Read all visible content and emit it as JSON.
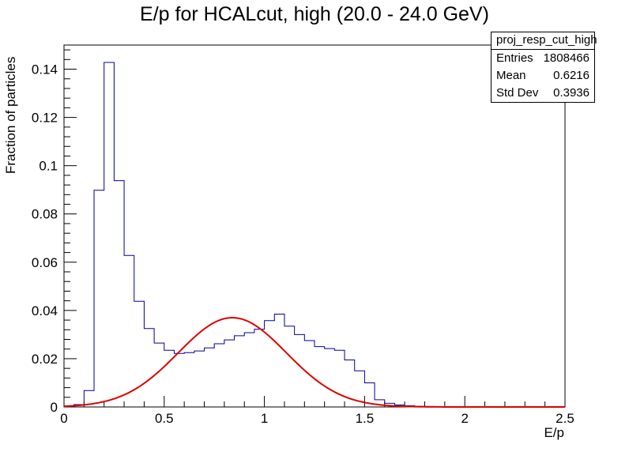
{
  "chart_data": {
    "type": "step-histogram-with-fit",
    "title": "E/p for HCALcut, high (20.0 - 24.0 GeV)",
    "xlabel": "E/p",
    "ylabel": "Fraction of particles",
    "xlim": [
      0,
      2.5
    ],
    "ylim": [
      0,
      0.15
    ],
    "x_ticks": [
      0,
      0.5,
      1,
      1.5,
      2,
      2.5
    ],
    "x_tick_labels": [
      "0",
      "0.5",
      "1",
      "1.5",
      "2",
      "2.5"
    ],
    "y_ticks": [
      0,
      0.02,
      0.04,
      0.06,
      0.08,
      0.1,
      0.12,
      0.14
    ],
    "y_tick_labels": [
      "0",
      "0.02",
      "0.04",
      "0.06",
      "0.08",
      "0.1",
      "0.12",
      "0.14"
    ],
    "bin_width": 0.05,
    "histogram": {
      "color": "#000099",
      "bin_edges_start": 0,
      "values": [
        0.0005,
        0.001,
        0.0068,
        0.0898,
        0.1428,
        0.0938,
        0.0628,
        0.0438,
        0.0325,
        0.0265,
        0.0235,
        0.0222,
        0.0225,
        0.0232,
        0.0245,
        0.0262,
        0.0278,
        0.0295,
        0.0308,
        0.0322,
        0.0358,
        0.0385,
        0.0335,
        0.03,
        0.0275,
        0.025,
        0.0242,
        0.0235,
        0.0195,
        0.015,
        0.01,
        0.003,
        0.0015,
        0.0008,
        0.0005,
        0.0003,
        0.0002,
        0.0001,
        0.0001,
        0.0001,
        0.0,
        0.0,
        0.0,
        0.0,
        0.0,
        0.0,
        0.0,
        0.0,
        0.0,
        0.0
      ]
    },
    "fit": {
      "type": "gaussian",
      "color": "#e00000",
      "amplitude": 0.037,
      "mean": 0.84,
      "sigma": 0.27,
      "x_range": [
        0,
        2.5
      ]
    }
  },
  "stats": {
    "name": "proj_resp_cut_high",
    "rows": [
      {
        "label": "Entries",
        "value": "1808466"
      },
      {
        "label": "Mean",
        "value": "0.6216"
      },
      {
        "label": "Std Dev",
        "value": "0.3936"
      }
    ]
  }
}
